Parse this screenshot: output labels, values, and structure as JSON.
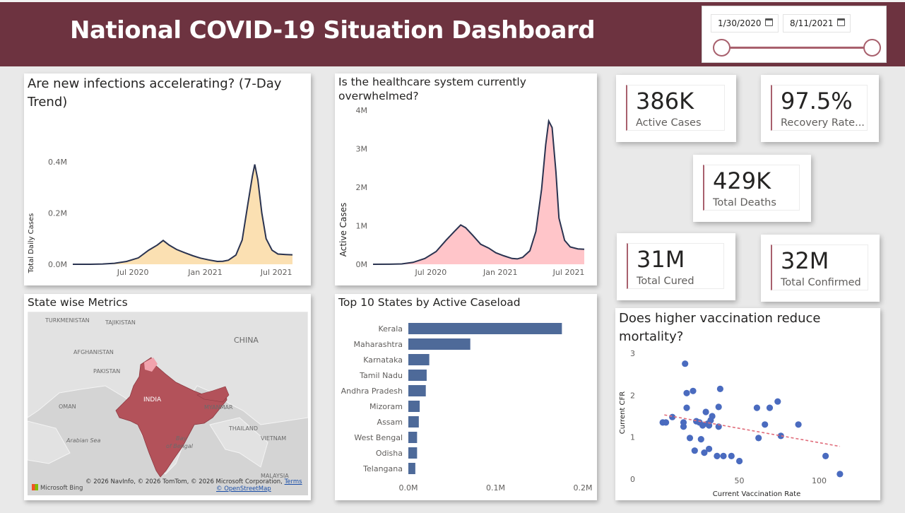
{
  "header": {
    "title": "National COVID-19 Situation Dashboard",
    "bg_color": "#6d3340"
  },
  "date_slicer": {
    "start_date": "1/30/2020",
    "end_date": "8/11/2021",
    "accent_color": "#a8606d"
  },
  "trend_chart": {
    "title": "Are new infections accelerating? (7-Day Trend)",
    "chart_data": {
      "type": "area",
      "title": "Are new infections accelerating? (7-Day Trend)",
      "xlabel": "",
      "ylabel": "Total Daily Cases",
      "x_ticks": [
        "Jul 2020",
        "Jan 2021",
        "Jul 2021"
      ],
      "y_ticks": [
        "0.0M",
        "0.2M",
        "0.4M"
      ],
      "ylim": [
        0,
        0.45
      ],
      "fill_color": "#fbe0b2",
      "line_color": "#2a3350",
      "series": [
        {
          "x": [
            "2020-01-30",
            "2020-03-15",
            "2020-04-15",
            "2020-05-15",
            "2020-06-15",
            "2020-07-15",
            "2020-08-10",
            "2020-09-01",
            "2020-09-16",
            "2020-10-01",
            "2020-10-20",
            "2020-11-10",
            "2020-12-01",
            "2020-12-20",
            "2021-01-10",
            "2021-02-01",
            "2021-02-15",
            "2021-03-01",
            "2021-03-20",
            "2021-04-05",
            "2021-04-20",
            "2021-05-01",
            "2021-05-07",
            "2021-05-15",
            "2021-05-25",
            "2021-06-05",
            "2021-06-20",
            "2021-07-05",
            "2021-07-25",
            "2021-08-11"
          ],
          "values": [
            0,
            0,
            0.001,
            0.004,
            0.011,
            0.025,
            0.055,
            0.075,
            0.093,
            0.075,
            0.058,
            0.045,
            0.033,
            0.024,
            0.017,
            0.011,
            0.012,
            0.016,
            0.036,
            0.095,
            0.24,
            0.345,
            0.39,
            0.33,
            0.2,
            0.1,
            0.055,
            0.04,
            0.038,
            0.037
          ]
        }
      ]
    }
  },
  "active_chart": {
    "title": "Is the healthcare system currently overwhelmed?",
    "chart_data": {
      "type": "area",
      "title": "Is the healthcare system currently overwhelmed?",
      "xlabel": "",
      "ylabel": "Active Cases",
      "x_ticks": [
        "Jul 2020",
        "Jan 2021",
        "Jul 2021"
      ],
      "y_ticks": [
        "0M",
        "1M",
        "2M",
        "3M",
        "4M"
      ],
      "ylim": [
        0,
        4
      ],
      "fill_color": "#ffc5c9",
      "line_color": "#2a3350",
      "series": [
        {
          "x": [
            "2020-01-30",
            "2020-03-15",
            "2020-04-15",
            "2020-05-15",
            "2020-06-15",
            "2020-07-15",
            "2020-08-10",
            "2020-09-01",
            "2020-09-18",
            "2020-10-01",
            "2020-10-20",
            "2020-11-10",
            "2020-12-01",
            "2020-12-20",
            "2021-01-10",
            "2021-02-01",
            "2021-02-15",
            "2021-03-01",
            "2021-03-20",
            "2021-04-05",
            "2021-04-20",
            "2021-05-01",
            "2021-05-09",
            "2021-05-18",
            "2021-05-28",
            "2021-06-05",
            "2021-06-20",
            "2021-07-05",
            "2021-07-25",
            "2021-08-11"
          ],
          "values": [
            0,
            0.001,
            0.01,
            0.05,
            0.15,
            0.33,
            0.62,
            0.85,
            1.02,
            0.95,
            0.75,
            0.52,
            0.42,
            0.3,
            0.22,
            0.15,
            0.14,
            0.18,
            0.35,
            0.85,
            1.95,
            3.1,
            3.72,
            3.55,
            2.4,
            1.2,
            0.62,
            0.45,
            0.4,
            0.39
          ]
        }
      ]
    }
  },
  "kpis": {
    "active": {
      "value": "386K",
      "label": "Active Cases"
    },
    "recovery": {
      "value": "97.5%",
      "label": "Recovery Rate..."
    },
    "deaths": {
      "value": "429K",
      "label": "Total Deaths"
    },
    "cured": {
      "value": "31M",
      "label": "Total Cured"
    },
    "confirmed": {
      "value": "32M",
      "label": "Total Confirmed"
    },
    "accent_color": "#a8606d"
  },
  "map": {
    "title": "State wise Metrics",
    "labels": {
      "turkmenistan": "TURKMENISTAN",
      "tajikistan": "TAJIKISTAN",
      "afghanistan": "AFGHANISTAN",
      "china": "CHINA",
      "pakistan": "PAKISTAN",
      "oman": "OMAN",
      "india": "INDIA",
      "myanmar": "MYANMAR",
      "thailand": "THAILAND",
      "vietnam": "VIETNAM",
      "arabian_sea": "Arabian Sea",
      "bay": "Bay",
      "of_bengal": "of Bengal",
      "malaysia": "MALAYSIA"
    },
    "attribution": "© 2026 NavInfo, © 2026 TomTom, © 2026 Microsoft Corporation,",
    "terms": "Terms",
    "osm": "© OpenStreetMap",
    "bing": "Microsoft Bing",
    "fill_color": "#b3525a"
  },
  "top_states": {
    "title": "Top 10 States by Active Caseload",
    "chart_data": {
      "type": "bar",
      "orientation": "horizontal",
      "title": "Top 10 States by Active Caseload",
      "categories": [
        "Kerala",
        "Maharashtra",
        "Karnataka",
        "Tamil Nadu",
        "Andhra Pradesh",
        "Mizoram",
        "Assam",
        "West Bengal",
        "Odisha",
        "Telangana"
      ],
      "values": [
        0.176,
        0.071,
        0.024,
        0.021,
        0.02,
        0.013,
        0.012,
        0.01,
        0.01,
        0.008
      ],
      "x_ticks": [
        "0.0M",
        "0.1M",
        "0.2M"
      ],
      "xlim": [
        0,
        0.2
      ],
      "bar_color": "#4e6a99"
    }
  },
  "scatter": {
    "title": "Does higher vaccination reduce mortality?",
    "chart_data": {
      "type": "scatter",
      "title": "Does higher vaccination reduce mortality?",
      "xlabel": "Current Vaccination Rate",
      "ylabel": "Current CFR",
      "x_ticks": [
        "50",
        "100"
      ],
      "y_ticks": [
        "0",
        "1",
        "2",
        "3"
      ],
      "xlim": [
        -10,
        125
      ],
      "ylim": [
        -0.1,
        3.2
      ],
      "point_color": "#4a6bbf",
      "trend_color": "#e06c7a",
      "trend": [
        [
          3,
          1.53
        ],
        [
          113,
          0.78
        ]
      ],
      "points": [
        [
          2,
          1.35
        ],
        [
          4,
          1.35
        ],
        [
          8,
          1.48
        ],
        [
          15,
          1.25
        ],
        [
          15,
          1.35
        ],
        [
          16,
          2.75
        ],
        [
          17,
          2.05
        ],
        [
          17,
          1.7
        ],
        [
          19,
          0.98
        ],
        [
          21,
          2.1
        ],
        [
          22,
          0.68
        ],
        [
          23,
          1.38
        ],
        [
          25,
          1.35
        ],
        [
          26,
          0.95
        ],
        [
          27,
          1.28
        ],
        [
          28,
          0.63
        ],
        [
          29,
          1.6
        ],
        [
          30,
          1.32
        ],
        [
          31,
          0.72
        ],
        [
          31,
          1.28
        ],
        [
          32,
          1.4
        ],
        [
          33,
          1.5
        ],
        [
          36,
          0.55
        ],
        [
          37,
          1.72
        ],
        [
          37,
          1.25
        ],
        [
          38,
          2.15
        ],
        [
          40,
          0.55
        ],
        [
          45,
          0.55
        ],
        [
          50,
          0.43
        ],
        [
          61,
          1.7
        ],
        [
          62,
          0.98
        ],
        [
          66,
          1.3
        ],
        [
          69,
          1.7
        ],
        [
          74,
          1.85
        ],
        [
          76,
          1.03
        ],
        [
          87,
          1.3
        ],
        [
          104,
          0.55
        ],
        [
          113,
          0.12
        ]
      ]
    }
  }
}
